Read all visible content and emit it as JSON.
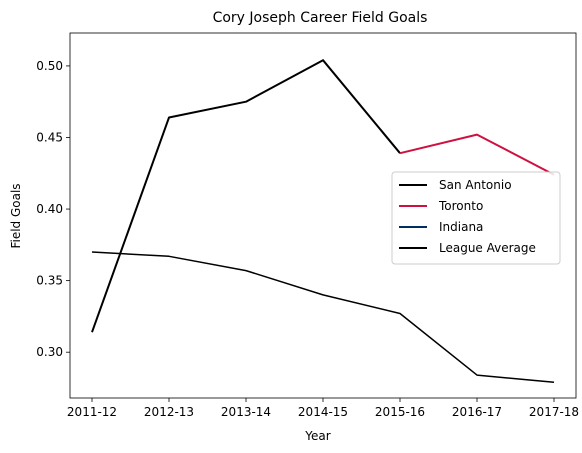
{
  "chart_data": {
    "type": "line",
    "title": "Cory Joseph Career Field Goals",
    "xlabel": "Year",
    "ylabel": "Field Goals",
    "categories": [
      "2011-12",
      "2012-13",
      "2013-14",
      "2014-15",
      "2015-16",
      "2016-17",
      "2017-18"
    ],
    "ylim": [
      0.268,
      0.523
    ],
    "yticks": [
      0.3,
      0.35,
      0.4,
      0.45,
      0.5
    ],
    "ytick_labels": [
      "0.30",
      "0.35",
      "0.40",
      "0.45",
      "0.50"
    ],
    "grid": false,
    "legend_position": "center-right",
    "series": [
      {
        "name": "San Antonio",
        "color": "#000000",
        "width": 2,
        "values": [
          0.314,
          0.464,
          0.475,
          0.504,
          0.439,
          null,
          null
        ]
      },
      {
        "name": "Toronto",
        "color": "#ce1141",
        "width": 2,
        "values": [
          null,
          null,
          null,
          null,
          0.439,
          0.452,
          0.424
        ]
      },
      {
        "name": "Indiana",
        "color": "#002d62",
        "width": 2,
        "values": [
          null,
          null,
          null,
          null,
          null,
          null,
          null
        ]
      },
      {
        "name": "League Average",
        "color": "#000000",
        "width": 1.5,
        "values": [
          0.37,
          0.367,
          0.357,
          0.34,
          0.327,
          0.284,
          0.279
        ]
      }
    ]
  }
}
